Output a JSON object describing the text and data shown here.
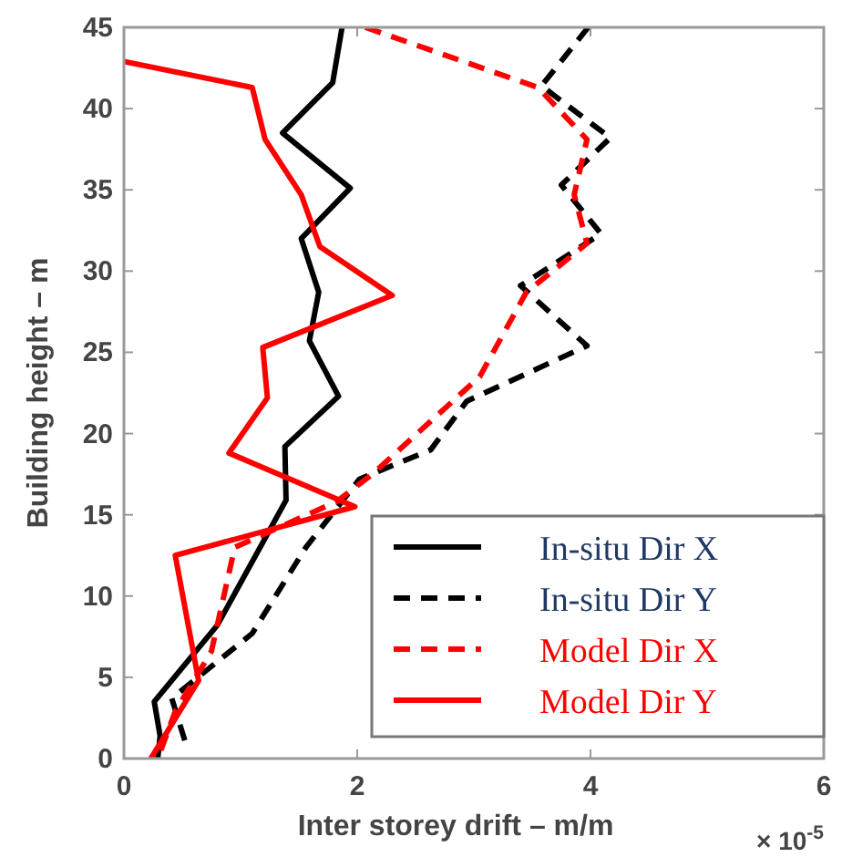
{
  "chart_data": {
    "type": "line",
    "xlabel": "Inter storey drift – m/m",
    "ylabel": "Building height – m",
    "annotations": [
      "× 10$^{-5}$"
    ],
    "xlim": [
      0,
      6
    ],
    "xticks": [
      0,
      2,
      4,
      6
    ],
    "ylim": [
      0,
      45
    ],
    "yticks": [
      0,
      5,
      10,
      15,
      20,
      25,
      30,
      35,
      40,
      45
    ],
    "grid": false,
    "legend": "bottom right",
    "marker": "none",
    "series": [
      {
        "name": "In-situ Dir X",
        "color": "#000000",
        "line_style": "solid",
        "x": [
          1.87,
          1.79,
          1.36,
          1.94,
          1.52,
          1.67,
          1.59,
          1.84,
          1.38,
          1.39,
          0.8,
          0.26,
          0.31,
          0.29
        ],
        "values": [
          45,
          41.6,
          38.5,
          35.1,
          32,
          28.7,
          25.7,
          22.3,
          19.2,
          15.9,
          8.2,
          3.5,
          1.4,
          0
        ]
      },
      {
        "name": "In-situ Dir Y",
        "color": "#000000",
        "line_style": "dashed",
        "x": [
          3.98,
          3.58,
          4.17,
          3.75,
          4.09,
          3.4,
          3.97,
          2.94,
          2.63,
          2.02,
          1.56,
          1.1,
          0.41,
          0.54
        ],
        "values": [
          45,
          41.4,
          38.2,
          35.3,
          32.3,
          29.1,
          25.4,
          22,
          19,
          17.2,
          13,
          7.7,
          3.7,
          0.7
        ]
      },
      {
        "name": "Model Dir X",
        "color": "#ff0000",
        "line_style": "dashed",
        "x": [
          2.07,
          3.55,
          3.97,
          3.86,
          3.97,
          3.45,
          3.05,
          2.13,
          1.82,
          0.95,
          0.75,
          0.44,
          0.29
        ],
        "values": [
          45,
          41.3,
          38.1,
          34.7,
          31.7,
          28.7,
          23.5,
          17.5,
          15.8,
          13,
          6.6,
          2.9,
          0
        ]
      },
      {
        "name": "Model Dir Y",
        "color": "#ff0000",
        "line_style": "solid",
        "x": [
          0,
          1.1,
          1.21,
          1.52,
          1.68,
          2.3,
          1.19,
          1.23,
          0.9,
          1.98,
          0.44,
          0.64,
          0.23
        ],
        "values": [
          42.9,
          41.3,
          38.1,
          34.7,
          31.5,
          28.5,
          25.3,
          22.2,
          18.8,
          15.5,
          12.5,
          4.8,
          0
        ]
      }
    ]
  }
}
